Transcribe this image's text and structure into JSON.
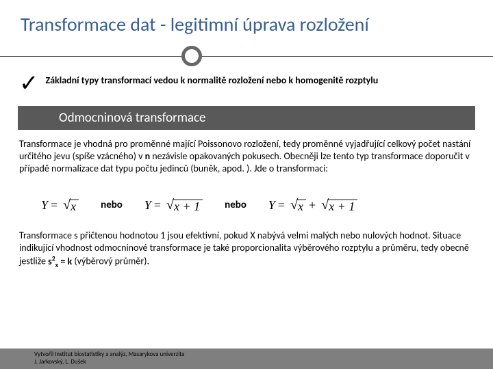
{
  "title": "Transformace dat - legitimní úprava rozložení",
  "summary": "Základní typy transformací vedou k normalitě rozložení nebo k homogenitě rozptylu",
  "band": "Odmocninová transformace",
  "para1_a": "Transformace je vhodná pro proměnné mající Poissonovo rozložení, tedy proměnné vyjadřující celkový počet nastání určitého jevu (spíše vzácného) v ",
  "para1_b": "n",
  "para1_c": " nezávisle opakovaných pokusech. Obecněji lze tento typ transformace doporučit v případě normalizace dat typu počtu jedinců (buněk, apod. ). Jde o transformaci:",
  "nebo": "nebo",
  "formula": {
    "y": "Y",
    "x": "x",
    "xp1": "x + 1",
    "plus": "+"
  },
  "para2_a": "Transformace s přičtenou hodnotou 1 jsou efektivní, pokud X nabývá velmi malých nebo nulových hodnot. Situace indikující vhodnost odmocninové transformace je také proporcionalita výběrového rozptylu a průměru, tedy obecně jestliže ",
  "para2_b": "s",
  "para2_c": " = k",
  "para2_d": " (výběrový průměr).",
  "footer1": "Vytvořil Institut biostatistiky a analýz, Masarykova univerzita",
  "footer2": "J. Jarkovský, L. Dušek",
  "logo1": "I",
  "logo2": "BA"
}
